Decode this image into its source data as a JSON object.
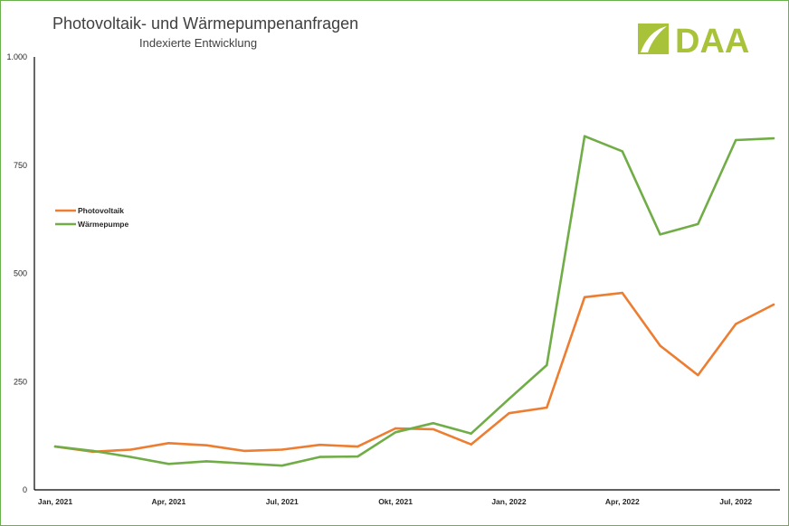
{
  "chart_data": {
    "type": "line",
    "title": "Photovoltaik- und Wärmepumpenanfragen",
    "subtitle": "Indexierte Entwicklung",
    "brand": "DAA",
    "xlabel": "",
    "ylabel": "",
    "ylim": [
      0,
      1000
    ],
    "yticks": [
      0,
      250,
      500,
      750,
      1000
    ],
    "ytick_labels": [
      "0",
      "250",
      "500",
      "750",
      "1.000"
    ],
    "x": [
      "Jan, 2021",
      "Feb, 2021",
      "Mär, 2021",
      "Apr, 2021",
      "Mai, 2021",
      "Jun, 2021",
      "Jul, 2021",
      "Aug, 2021",
      "Sep, 2021",
      "Okt, 2021",
      "Nov, 2021",
      "Dez, 2021",
      "Jan, 2022",
      "Feb, 2022",
      "Mär, 2022",
      "Apr, 2022",
      "Mai, 2022",
      "Jun, 2022",
      "Jul, 2022",
      "Aug, 2022"
    ],
    "xtick_labels": [
      "Jan, 2021",
      "",
      "",
      "Apr, 2021",
      "",
      "",
      "Jul, 2021",
      "",
      "",
      "Okt, 2021",
      "",
      "",
      "Jan, 2022",
      "",
      "",
      "Apr, 2022",
      "",
      "",
      "Jul, 2022",
      ""
    ],
    "series": [
      {
        "name": "Photovoltaik",
        "color": "#ed7d31",
        "values": [
          100,
          88,
          93,
          108,
          103,
          90,
          93,
          104,
          100,
          142,
          140,
          105,
          177,
          190,
          445,
          455,
          333,
          265,
          383,
          428
        ]
      },
      {
        "name": "Wärmepumpe",
        "color": "#70ad47",
        "values": [
          100,
          90,
          76,
          60,
          66,
          61,
          56,
          76,
          77,
          133,
          154,
          130,
          210,
          288,
          817,
          782,
          590,
          614,
          808,
          812
        ]
      }
    ],
    "grid": false,
    "legend": "left",
    "colors": {
      "frame": "#6ab04c",
      "logo": "#a8c23a",
      "text": "#404040"
    }
  }
}
